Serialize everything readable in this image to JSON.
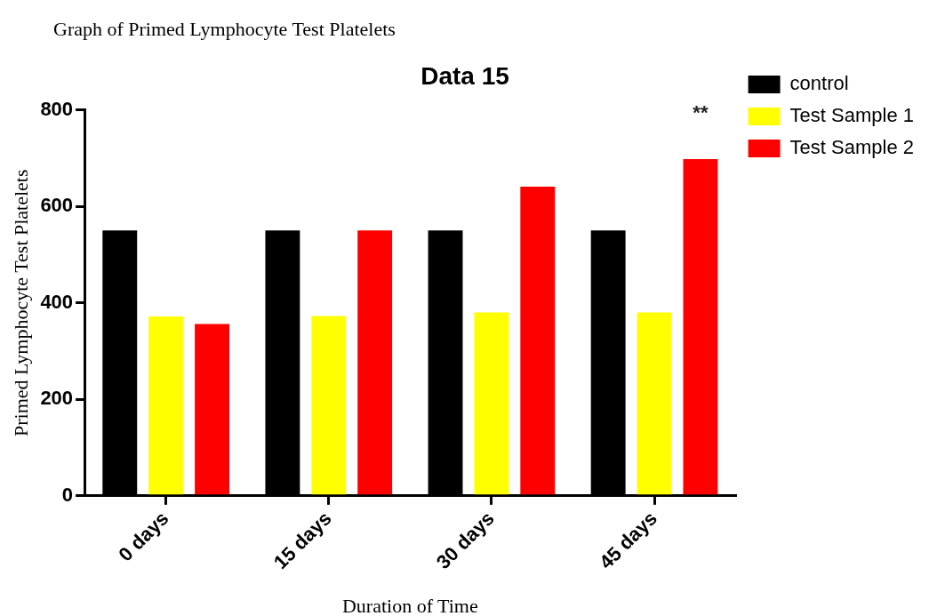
{
  "chart_data": {
    "type": "bar",
    "title": "Graph of Primed Lymphocyte Test Platelets",
    "subtitle": "Data 15",
    "xlabel": "Duration of Time",
    "ylabel": "Primed Lymphocyte Test Platelets",
    "categories": [
      "0 days",
      "15 days",
      "30 days",
      "45 days"
    ],
    "series": [
      {
        "name": "control",
        "color": "#000000",
        "values": [
          550,
          550,
          550,
          550
        ]
      },
      {
        "name": "Test Sample 1",
        "color": "#ffff00",
        "values": [
          372,
          373,
          380,
          380
        ]
      },
      {
        "name": "Test Sample 2",
        "color": "#ff0000",
        "values": [
          356,
          550,
          641,
          698
        ]
      }
    ],
    "ylim": [
      0,
      800
    ],
    "yticks": [
      0,
      200,
      400,
      600,
      800
    ],
    "grid": false,
    "legend": "right",
    "annotations": [
      "**"
    ]
  }
}
